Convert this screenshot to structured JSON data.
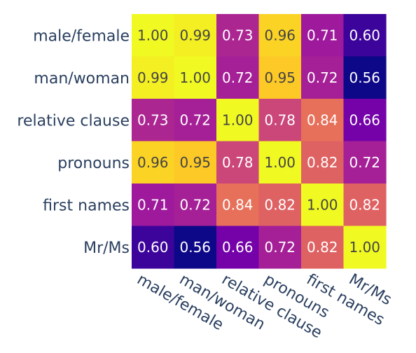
{
  "chart_data": {
    "type": "heatmap",
    "x_labels": [
      "male/female",
      "man/woman",
      "relative clause",
      "pronouns",
      "first names",
      "Mr/Ms"
    ],
    "y_labels": [
      "male/female",
      "man/woman",
      "relative clause",
      "pronouns",
      "first names",
      "Mr/Ms"
    ],
    "values": [
      [
        1.0,
        0.99,
        0.73,
        0.96,
        0.71,
        0.6
      ],
      [
        0.99,
        1.0,
        0.72,
        0.95,
        0.72,
        0.56
      ],
      [
        0.73,
        0.72,
        1.0,
        0.78,
        0.84,
        0.66
      ],
      [
        0.96,
        0.95,
        0.78,
        1.0,
        0.82,
        0.72
      ],
      [
        0.71,
        0.72,
        0.84,
        0.82,
        1.0,
        0.82
      ],
      [
        0.6,
        0.56,
        0.66,
        0.72,
        0.82,
        1.0
      ]
    ],
    "value_labels": [
      [
        "1.00",
        "0.99",
        "0.73",
        "0.96",
        "0.71",
        "0.60"
      ],
      [
        "0.99",
        "1.00",
        "0.72",
        "0.95",
        "0.72",
        "0.56"
      ],
      [
        "0.73",
        "0.72",
        "1.00",
        "0.78",
        "0.84",
        "0.66"
      ],
      [
        "0.96",
        "0.95",
        "0.78",
        "1.00",
        "0.82",
        "0.72"
      ],
      [
        "0.71",
        "0.72",
        "0.84",
        "0.82",
        "1.00",
        "0.82"
      ],
      [
        "0.60",
        "0.56",
        "0.66",
        "0.72",
        "0.82",
        "1.00"
      ]
    ],
    "colorscale": "plasma",
    "zlim": [
      0.56,
      1.0
    ],
    "title": "",
    "xlabel": "",
    "ylabel": "",
    "legend": "none"
  },
  "colors": {
    "axis_text": "#2a3f5f",
    "cell_text_dark": "#444444",
    "cell_text_light": "#ffffff"
  }
}
